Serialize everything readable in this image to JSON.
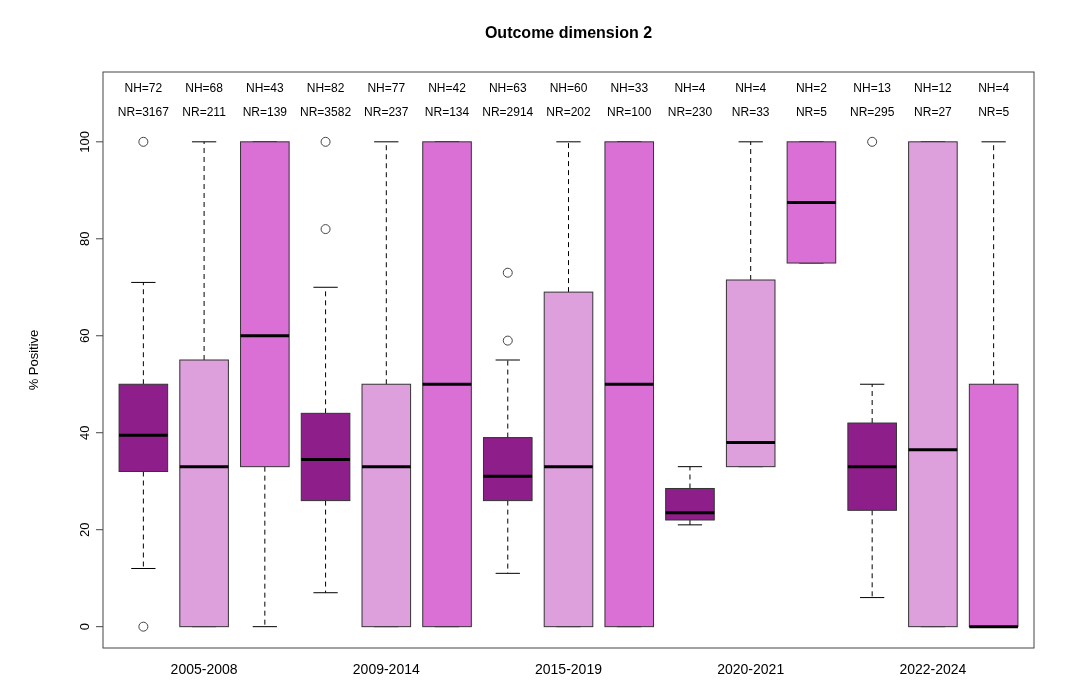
{
  "chart_data": {
    "type": "box",
    "title": "Outcome dimension 2",
    "ylabel": "% Positive",
    "categories": [
      null,
      "2005-2008",
      null,
      null,
      "2009-2014",
      null,
      null,
      "2015-2019",
      null,
      null,
      "2020-2021",
      null,
      null,
      "2022-2024",
      null
    ],
    "colors": [
      "#8e1f8a",
      "#dda0dd",
      "#da70d6",
      "#8e1f8a",
      "#dda0dd",
      "#da70d6",
      "#8e1f8a",
      "#dda0dd",
      "#da70d6",
      "#8e1f8a",
      "#dda0dd",
      "#da70d6",
      "#8e1f8a",
      "#dda0dd",
      "#da70d6"
    ],
    "boxes": [
      {
        "low": 12,
        "q1": 32,
        "median": 39.5,
        "q3": 50,
        "high": 71,
        "outliers": [
          100,
          0
        ]
      },
      {
        "low": 0,
        "q1": 0,
        "median": 33,
        "q3": 55,
        "high": 100
      },
      {
        "low": 0,
        "q1": 33,
        "median": 60,
        "q3": 100,
        "high": 100
      },
      {
        "low": 7,
        "q1": 26,
        "median": 34.5,
        "q3": 44,
        "high": 70,
        "outliers": [
          82,
          100
        ]
      },
      {
        "low": 0,
        "q1": 0,
        "median": 33,
        "q3": 50,
        "high": 100
      },
      {
        "low": 0,
        "q1": 0,
        "median": 50,
        "q3": 100,
        "high": 100
      },
      {
        "low": 11,
        "q1": 26,
        "median": 31,
        "q3": 39,
        "high": 55,
        "outliers": [
          59,
          73
        ]
      },
      {
        "low": 0,
        "q1": 0,
        "median": 33,
        "q3": 69,
        "high": 100
      },
      {
        "low": 0,
        "q1": 0,
        "median": 50,
        "q3": 100,
        "high": 100
      },
      {
        "low": 21,
        "q1": 22,
        "median": 23.5,
        "q3": 28.5,
        "high": 33
      },
      {
        "low": 33,
        "q1": 33,
        "median": 38,
        "q3": 71.5,
        "high": 100
      },
      {
        "low": 75,
        "q1": 75,
        "median": 87.5,
        "q3": 100,
        "high": 100
      },
      {
        "low": 6,
        "q1": 24,
        "median": 33,
        "q3": 42,
        "high": 50,
        "outliers": [
          100
        ]
      },
      {
        "low": 0,
        "q1": 0,
        "median": 36.5,
        "q3": 100,
        "high": 100
      },
      {
        "low": 0,
        "q1": 0,
        "median": 0,
        "q3": 50,
        "high": 100
      }
    ],
    "annotations": [
      "NH=72",
      "NR=3167",
      "NH=68",
      "NR=211",
      "NH=43",
      "NR=139",
      "NH=82",
      "NR=3582",
      "NH=77",
      "NR=237",
      "NH=42",
      "NR=134",
      "NH=63",
      "NR=2914",
      "NH=60",
      "NR=202",
      "NH=33",
      "NR=100",
      "NH=4",
      "NR=230",
      "NH=4",
      "NR=33",
      "NH=2",
      "NR=5",
      "NH=13",
      "NR=295",
      "NH=12",
      "NR=27",
      "NH=4",
      "NR=5"
    ],
    "ylim": [
      -4.4,
      114.4
    ],
    "yticks": [
      0,
      20,
      40,
      60,
      80,
      100
    ],
    "grid": false
  }
}
